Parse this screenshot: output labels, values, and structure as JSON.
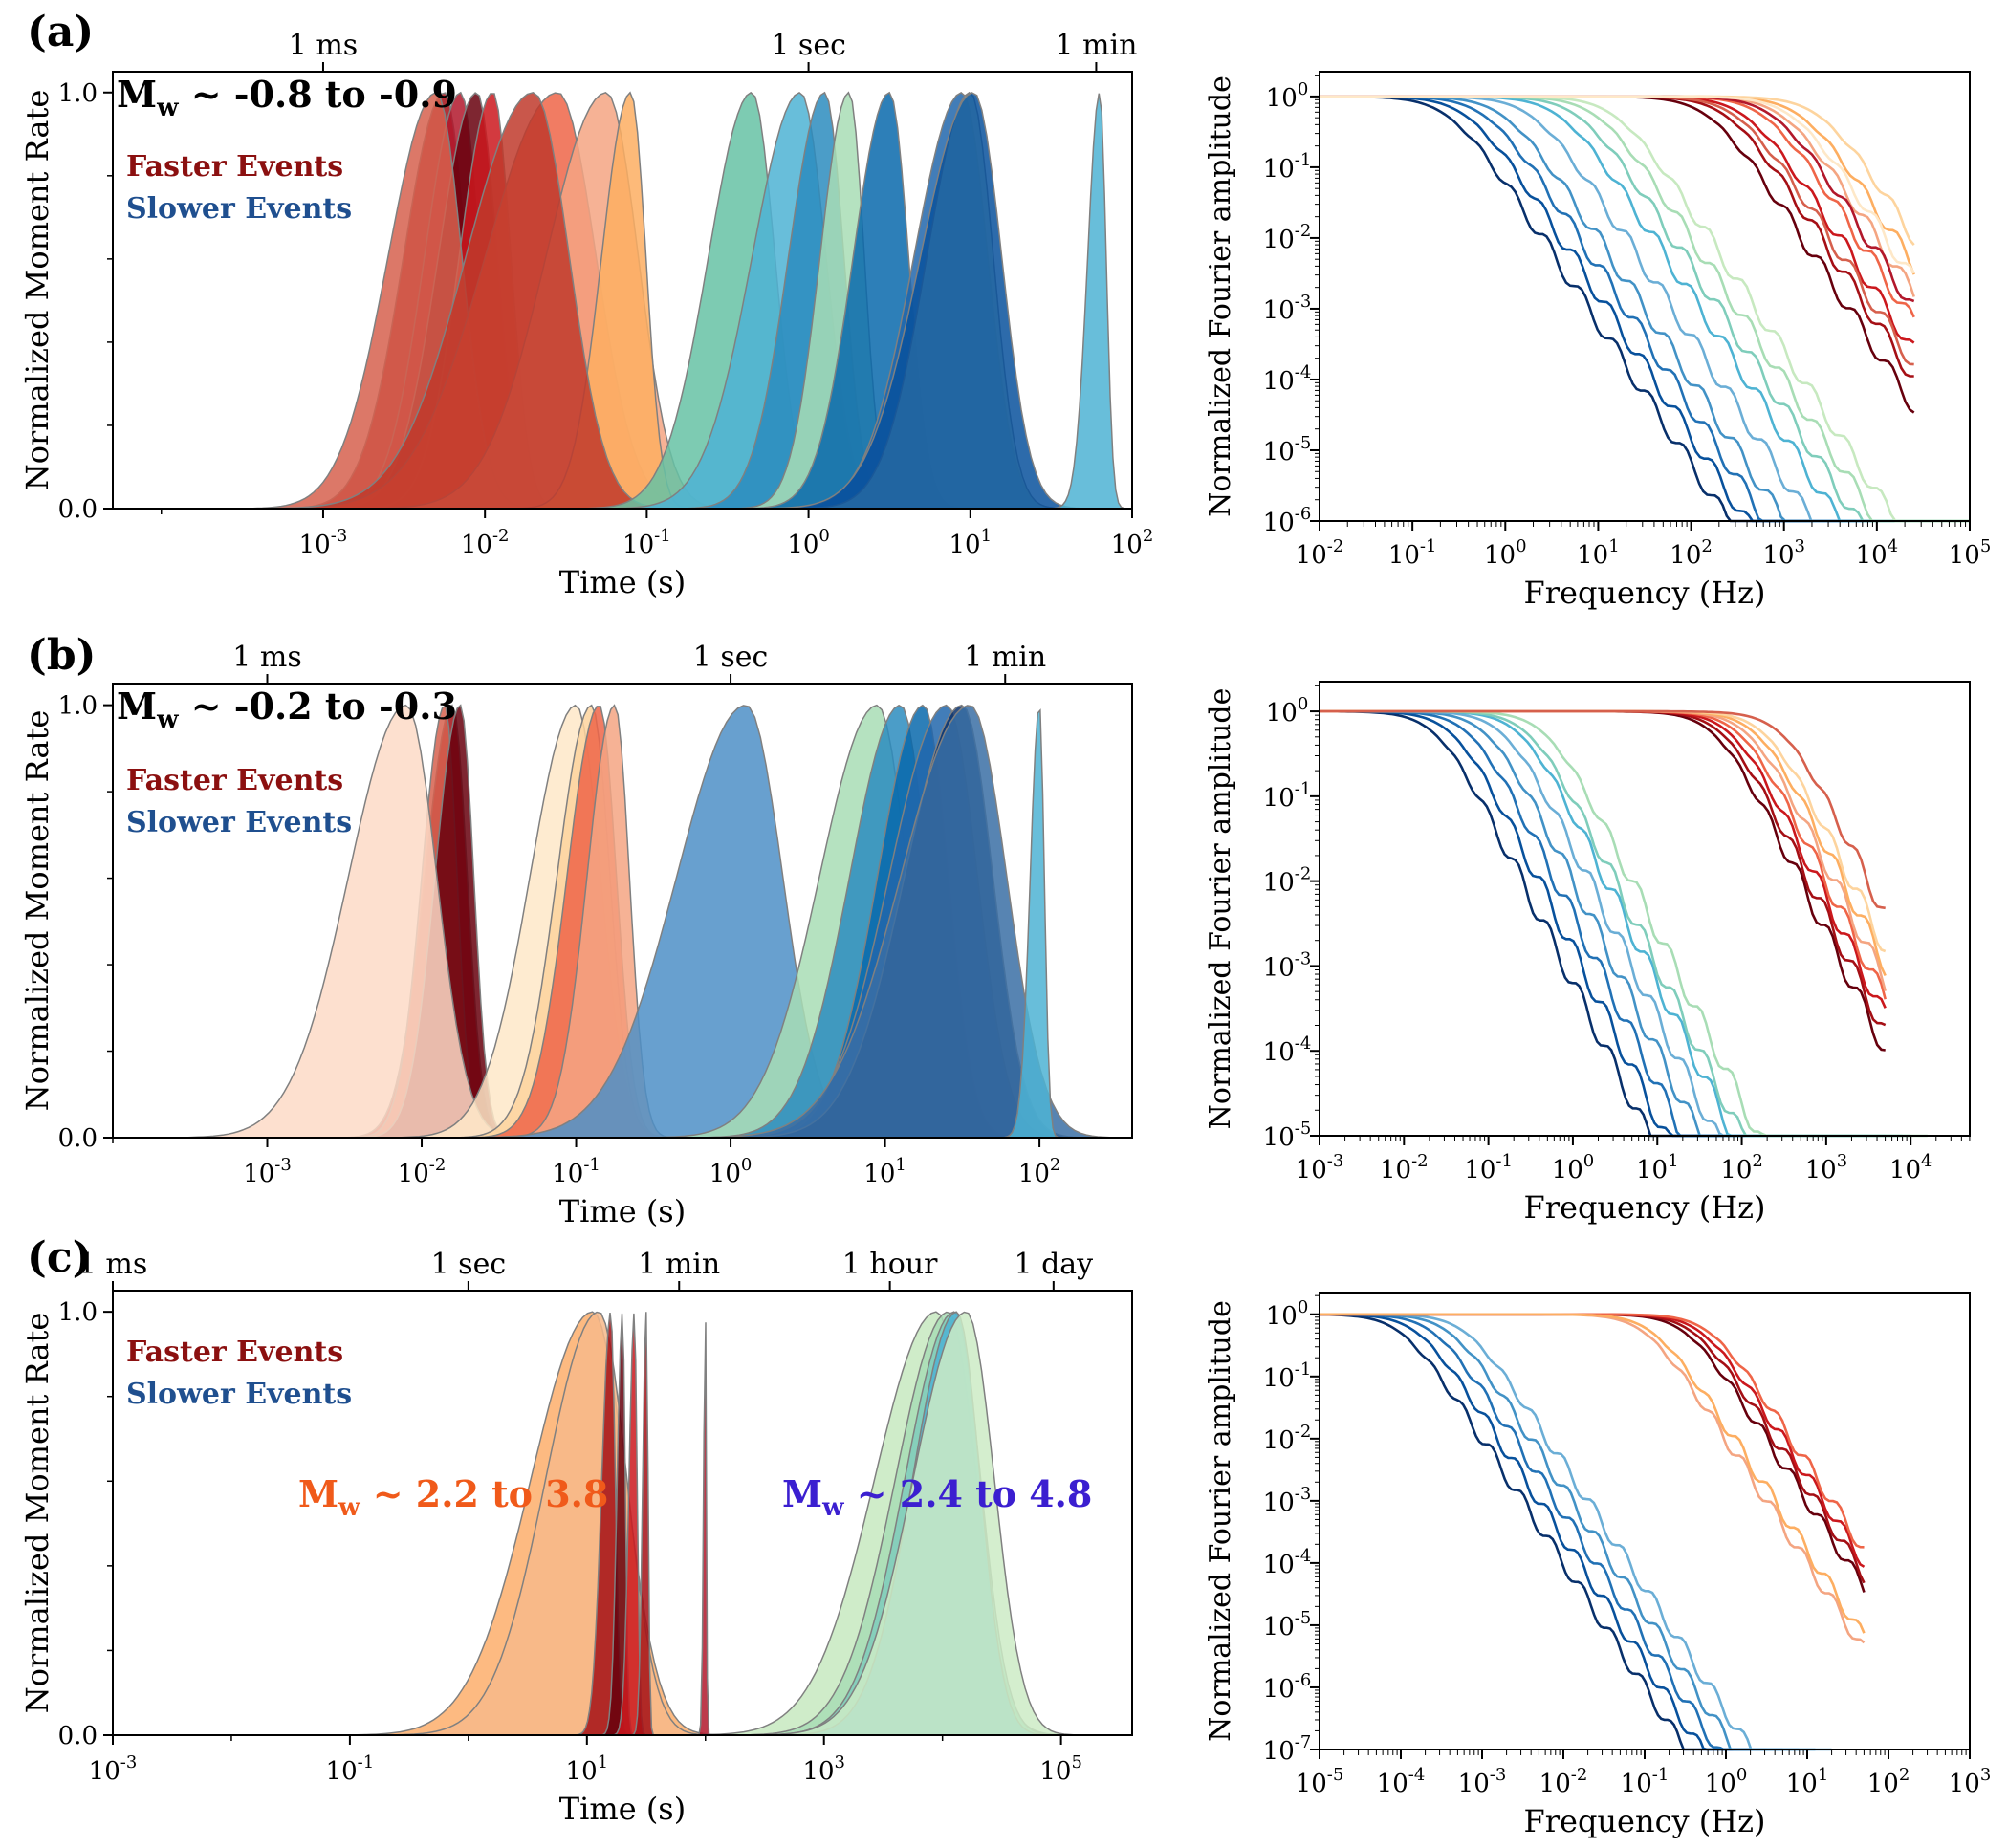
{
  "figure": {
    "colors": {
      "faster_label": "#8b1010",
      "slower_label": "#1f4f8f",
      "mw_fast_label": "#f05a1a",
      "mw_slow_label": "#3b1fd0",
      "spine": "#000000",
      "outline": "#808080"
    }
  },
  "chart_data": [
    {
      "panel": "(a)",
      "type": "area",
      "title": "Mw ~ -0.8 to -0.9",
      "title_main": "M",
      "title_sub": "w",
      "title_rest": " ~ -0.8 to -0.9",
      "legend": [
        "Faster Events",
        "Slower Events"
      ],
      "xlabel": "Time (s)",
      "ylabel": "Normalized Moment Rate",
      "xscale": "log",
      "xlim_log10": [
        -4.3,
        2.0
      ],
      "ylim": [
        0,
        1.05
      ],
      "xticks_log10": [
        -3,
        -2,
        -1,
        0,
        1,
        2
      ],
      "yticks": [
        0.0,
        1.0
      ],
      "ytick_labels": [
        "0.0",
        "1.0"
      ],
      "top_axis": [
        {
          "label": "1 ms",
          "log10": -3
        },
        {
          "label": "1 sec",
          "log10": 0
        },
        {
          "label": "1 min",
          "log10": 1.778
        }
      ],
      "series_fast": [
        {
          "center": -2.25,
          "width": 0.17,
          "color": "#a50f15"
        },
        {
          "center": -2.15,
          "width": 0.15,
          "color": "#b2182b"
        },
        {
          "center": -2.05,
          "width": 0.16,
          "color": "#67000d"
        },
        {
          "center": -1.95,
          "width": 0.14,
          "color": "#cb181d"
        },
        {
          "center": -2.3,
          "width": 0.2,
          "color": "#d6604d"
        },
        {
          "center": -1.55,
          "width": 0.3,
          "color": "#ef6548"
        },
        {
          "center": -1.25,
          "width": 0.25,
          "color": "#f4a582"
        },
        {
          "center": -1.1,
          "width": 0.12,
          "color": "#fdae61"
        },
        {
          "center": -1.7,
          "width": 0.28,
          "color": "#c0392b"
        }
      ],
      "series_slow": [
        {
          "center": -0.35,
          "width": 0.18,
          "color": "#66c2a5"
        },
        {
          "center": -0.05,
          "width": 0.2,
          "color": "#4eb3d3"
        },
        {
          "center": 0.1,
          "width": 0.15,
          "color": "#2b8cbe"
        },
        {
          "center": 0.25,
          "width": 0.12,
          "color": "#a8ddb5"
        },
        {
          "center": 0.5,
          "width": 0.15,
          "color": "#0868ac"
        },
        {
          "center": 0.95,
          "width": 0.2,
          "color": "#2166ac"
        },
        {
          "center": 1.0,
          "width": 0.18,
          "color": "#c7e9c0"
        },
        {
          "center": 1.02,
          "width": 0.22,
          "color": "#08519c"
        },
        {
          "center": 1.8,
          "width": 0.05,
          "color": "#4eb3d3"
        }
      ]
    },
    {
      "panel": "(a) spectra",
      "type": "line",
      "xlabel": "Frequency (Hz)",
      "ylabel": "Normalized Fourier amplitude",
      "xscale": "log",
      "yscale": "log",
      "xlim_log10": [
        -2,
        5
      ],
      "ylim_log10": [
        -6,
        0.35
      ],
      "xticks_log10": [
        -2,
        -1,
        0,
        1,
        2,
        3,
        4,
        5
      ],
      "yticks_log10": [
        -6,
        -5,
        -4,
        -3,
        -2,
        -1,
        0
      ],
      "corner_freqs_log10_fast": [
        2.2,
        2.4,
        2.6,
        2.8,
        3.0,
        3.2,
        3.4,
        2.5,
        2.9,
        3.1
      ],
      "corner_freqs_log10_slow": [
        -0.6,
        -0.4,
        -0.2,
        0.0,
        0.3,
        0.6,
        0.8,
        1.0,
        1.2
      ],
      "end_log10": 4.4
    },
    {
      "panel": "(b)",
      "type": "area",
      "title": "Mw ~ -0.2 to -0.3",
      "title_main": "M",
      "title_sub": "w",
      "title_rest": " ~ -0.2 to -0.3",
      "legend": [
        "Faster Events",
        "Slower Events"
      ],
      "xlabel": "Time (s)",
      "ylabel": "Normalized Moment Rate",
      "xscale": "log",
      "xlim_log10": [
        -4.0,
        2.6
      ],
      "ylim": [
        0,
        1.05
      ],
      "xticks_log10": [
        -3,
        -2,
        -1,
        0,
        1,
        2
      ],
      "yticks": [
        0.0,
        1.0
      ],
      "ytick_labels": [
        "0.0",
        "1.0"
      ],
      "top_axis": [
        {
          "label": "1 ms",
          "log10": -3
        },
        {
          "label": "1 sec",
          "log10": 0
        },
        {
          "label": "1 min",
          "log10": 1.778
        }
      ],
      "series_fast": [
        {
          "center": -1.8,
          "width": 0.12,
          "color": "#a50f15"
        },
        {
          "center": -1.85,
          "width": 0.1,
          "color": "#d6604d"
        },
        {
          "center": -1.75,
          "width": 0.11,
          "color": "#67000d"
        },
        {
          "center": -2.1,
          "width": 0.25,
          "color": "#fddbc7"
        },
        {
          "center": -1.0,
          "width": 0.2,
          "color": "#fee8c8"
        },
        {
          "center": -0.9,
          "width": 0.15,
          "color": "#fdd49e"
        },
        {
          "center": -0.85,
          "width": 0.14,
          "color": "#ef6548"
        },
        {
          "center": -0.75,
          "width": 0.12,
          "color": "#f4a582"
        }
      ],
      "series_slow": [
        {
          "center": 0.1,
          "width": 0.3,
          "color": "#4e8fc7"
        },
        {
          "center": 0.95,
          "width": 0.25,
          "color": "#a8ddb5"
        },
        {
          "center": 1.1,
          "width": 0.22,
          "color": "#2b8cbe"
        },
        {
          "center": 1.25,
          "width": 0.2,
          "color": "#0868ac"
        },
        {
          "center": 1.4,
          "width": 0.25,
          "color": "#2166ac"
        },
        {
          "center": 1.5,
          "width": 0.25,
          "color": "#08306b"
        },
        {
          "center": 1.55,
          "width": 0.3,
          "color": "#3a6ea5"
        },
        {
          "center": 2.0,
          "width": 0.04,
          "color": "#4eb3d3"
        }
      ]
    },
    {
      "panel": "(b) spectra",
      "type": "line",
      "xlabel": "Frequency (Hz)",
      "ylabel": "Normalized Fourier amplitude",
      "xscale": "log",
      "yscale": "log",
      "xlim_log10": [
        -3,
        4.7
      ],
      "ylim_log10": [
        -5,
        0.35
      ],
      "xticks_log10": [
        -3,
        -2,
        -1,
        0,
        1,
        2,
        3,
        4
      ],
      "yticks_log10": [
        -5,
        -4,
        -3,
        -2,
        -1,
        0
      ],
      "corner_freqs_log10_fast": [
        1.7,
        1.8,
        1.9,
        2.0,
        2.1,
        2.2,
        2.3,
        2.5
      ],
      "corner_freqs_log10_slow": [
        -1.6,
        -1.4,
        -1.2,
        -1.0,
        -0.8,
        -0.6,
        -0.5,
        -0.3
      ],
      "end_log10": 3.7
    },
    {
      "panel": "(c)",
      "type": "area",
      "legend": [
        "Faster Events",
        "Slower Events"
      ],
      "annotations": [
        {
          "main": "M",
          "sub": "w",
          "rest": " ~ 2.2 to 3.8"
        },
        {
          "main": "M",
          "sub": "w",
          "rest": " ~ 2.4 to 4.8"
        }
      ],
      "xlabel": "Time (s)",
      "ylabel": "Normalized Moment Rate",
      "xscale": "log",
      "xlim_log10": [
        -3,
        5.6
      ],
      "ylim": [
        0,
        1.05
      ],
      "xticks_log10": [
        -3,
        -1,
        1,
        3,
        5
      ],
      "yticks": [
        0.0,
        1.0
      ],
      "ytick_labels": [
        "0.0",
        "1.0"
      ],
      "top_axis": [
        {
          "label": "1 ms",
          "log10": -3
        },
        {
          "label": "1 sec",
          "log10": 0
        },
        {
          "label": "1 min",
          "log10": 1.778
        },
        {
          "label": "1 hour",
          "log10": 3.556
        },
        {
          "label": "1 day",
          "log10": 4.937
        }
      ],
      "series_fast": [
        {
          "center": 1.05,
          "width": 0.35,
          "color": "#fdae6b"
        },
        {
          "center": 1.1,
          "width": 0.3,
          "color": "#f7b88a"
        },
        {
          "center": 1.2,
          "width": 0.05,
          "color": "#a50f15"
        },
        {
          "center": 1.3,
          "width": 0.03,
          "color": "#67000d"
        },
        {
          "center": 1.4,
          "width": 0.03,
          "color": "#cb181d"
        },
        {
          "center": 1.5,
          "width": 0.02,
          "color": "#a50f15"
        },
        {
          "center": 2.0,
          "width": 0.01,
          "color": "#b2182b"
        }
      ],
      "series_slow": [
        {
          "center": 3.95,
          "width": 0.35,
          "color": "#c7e9c0"
        },
        {
          "center": 4.05,
          "width": 0.3,
          "color": "#a8ddb5"
        },
        {
          "center": 4.1,
          "width": 0.28,
          "color": "#7fcdbb"
        },
        {
          "center": 4.12,
          "width": 0.25,
          "color": "#4eb3d3"
        },
        {
          "center": 4.2,
          "width": 0.3,
          "color": "#ccebc5"
        }
      ]
    },
    {
      "panel": "(c) spectra",
      "type": "line",
      "xlabel": "Frequency (Hz)",
      "ylabel": "Normalized Fourier amplitude",
      "xscale": "log",
      "yscale": "log",
      "xlim_log10": [
        -5,
        3
      ],
      "ylim_log10": [
        -7,
        0.35
      ],
      "xticks_log10": [
        -5,
        -4,
        -3,
        -2,
        -1,
        0,
        1,
        2,
        3
      ],
      "yticks_log10": [
        -7,
        -6,
        -5,
        -4,
        -3,
        -2,
        -1,
        0
      ],
      "corner_freqs_log10_fast": [
        -0.5,
        -0.4,
        -0.3,
        -0.2,
        -1.0,
        -0.9
      ],
      "corner_freqs_log10_slow": [
        -4.0,
        -3.8,
        -3.6,
        -3.4,
        -3.2
      ],
      "end_log10": 1.7
    }
  ]
}
